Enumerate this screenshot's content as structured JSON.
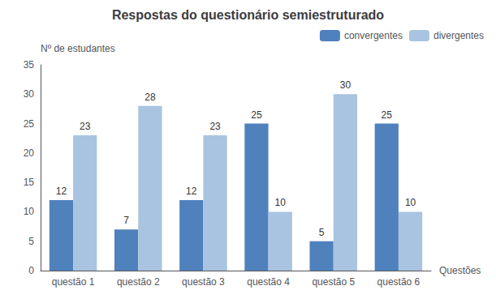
{
  "chart_data": {
    "type": "bar",
    "title": "Respostas do questionário semiestruturado",
    "xlabel": "Questões",
    "ylabel": "Nº de estudantes",
    "categories": [
      "questão 1",
      "questão 2",
      "questão 3",
      "questão 4",
      "questão 5",
      "questão 6"
    ],
    "series": [
      {
        "name": "convergentes",
        "color": "#4F81BD",
        "values": [
          12,
          7,
          12,
          25,
          5,
          25
        ]
      },
      {
        "name": "divergentes",
        "color": "#A8C4E0",
        "values": [
          23,
          28,
          23,
          10,
          30,
          10
        ]
      }
    ],
    "ylim": [
      0,
      35
    ],
    "yticks": [
      0,
      5,
      10,
      15,
      20,
      25,
      30,
      35
    ],
    "grid": false,
    "legend": "upper right",
    "data_labels": true
  }
}
